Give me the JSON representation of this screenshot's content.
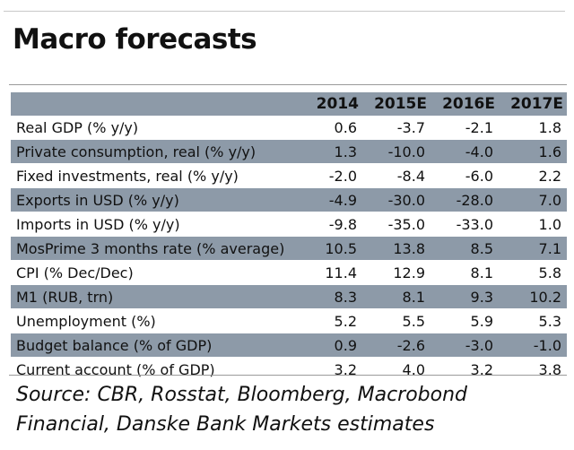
{
  "title": "Macro forecasts",
  "columns": [
    "",
    "2014",
    "2015E",
    "2016E",
    "2017E"
  ],
  "rows": [
    {
      "label": "Real GDP (% y/y)",
      "values": [
        "0.6",
        "-3.7",
        "-2.1",
        "1.8"
      ]
    },
    {
      "label": "Private consumption, real (% y/y)",
      "values": [
        "1.3",
        "-10.0",
        "-4.0",
        "1.6"
      ]
    },
    {
      "label": "Fixed investments, real (% y/y)",
      "values": [
        "-2.0",
        "-8.4",
        "-6.0",
        "2.2"
      ]
    },
    {
      "label": "Exports in USD (% y/y)",
      "values": [
        "-4.9",
        "-30.0",
        "-28.0",
        "7.0"
      ]
    },
    {
      "label": "Imports in USD (% y/y)",
      "values": [
        "-9.8",
        "-35.0",
        "-33.0",
        "1.0"
      ]
    },
    {
      "label": "MosPrime 3 months rate (% average)",
      "values": [
        "10.5",
        "13.8",
        "8.5",
        "7.1"
      ]
    },
    {
      "label": "CPI (% Dec/Dec)",
      "values": [
        "11.4",
        "12.9",
        "8.1",
        "5.8"
      ]
    },
    {
      "label": "M1 (RUB, trn)",
      "values": [
        "8.3",
        "8.1",
        "9.3",
        "10.2"
      ]
    },
    {
      "label": "Unemployment (%)",
      "values": [
        "5.2",
        "5.5",
        "5.9",
        "5.3"
      ]
    },
    {
      "label": "Budget balance (% of GDP)",
      "values": [
        "0.9",
        "-2.6",
        "-3.0",
        "-1.0"
      ]
    },
    {
      "label": "Current account (% of GDP)",
      "values": [
        "3.2",
        "4.0",
        "3.2",
        "3.8"
      ]
    }
  ],
  "source": "Source: CBR, Rosstat, Bloomberg, Macrobond Financial, Danske Bank Markets estimates",
  "colors": {
    "header_band": "#8d9aa8",
    "row_band": "#8d9aa8"
  }
}
